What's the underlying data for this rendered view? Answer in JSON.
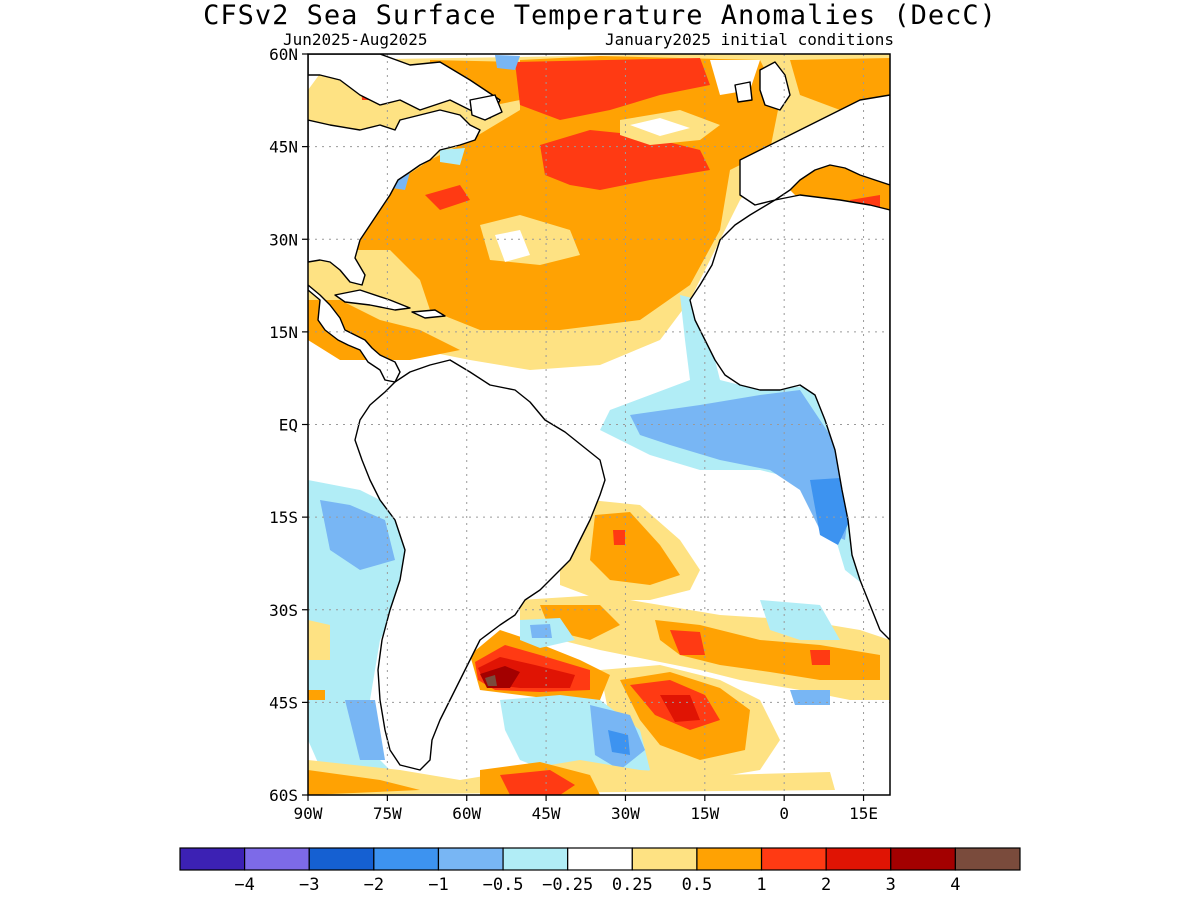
{
  "title": "CFSv2 Sea Surface Temperature Anomalies (DecC)",
  "subtitle_left": "Jun2025-Aug2025",
  "subtitle_right": "January2025 initial conditions",
  "map": {
    "lon_range": [
      -90,
      20
    ],
    "lat_range": [
      -60,
      60
    ],
    "lon_ticks": [
      {
        "lon": -90,
        "label": "90W"
      },
      {
        "lon": -75,
        "label": "75W"
      },
      {
        "lon": -60,
        "label": "60W"
      },
      {
        "lon": -45,
        "label": "45W"
      },
      {
        "lon": -30,
        "label": "30W"
      },
      {
        "lon": -15,
        "label": "15W"
      },
      {
        "lon": 0,
        "label": "0"
      },
      {
        "lon": 15,
        "label": "15E"
      }
    ],
    "lat_ticks": [
      {
        "lat": 60,
        "label": "60N"
      },
      {
        "lat": 45,
        "label": "45N"
      },
      {
        "lat": 30,
        "label": "30N"
      },
      {
        "lat": 15,
        "label": "15N"
      },
      {
        "lat": 0,
        "label": "EQ"
      },
      {
        "lat": -15,
        "label": "15S"
      },
      {
        "lat": -30,
        "label": "30S"
      },
      {
        "lat": -45,
        "label": "45S"
      },
      {
        "lat": -60,
        "label": "60S"
      }
    ]
  },
  "colorbar": {
    "colors": [
      "#3c21b4",
      "#7d6ae8",
      "#1560d2",
      "#3d93f0",
      "#78b6f4",
      "#b1edf6",
      "#ffffff",
      "#fee283",
      "#ffa203",
      "#ff3a13",
      "#e01404",
      "#a30000",
      "#7a4b3c"
    ],
    "labels": [
      "−4",
      "−3",
      "−2",
      "−1",
      "−0.5",
      "−0.25",
      "0.25",
      "0.5",
      "1",
      "2",
      "3",
      "4"
    ]
  },
  "colors": {
    "land": "#ffffff",
    "coast": "#000000",
    "grid": "#9a9a9a"
  }
}
